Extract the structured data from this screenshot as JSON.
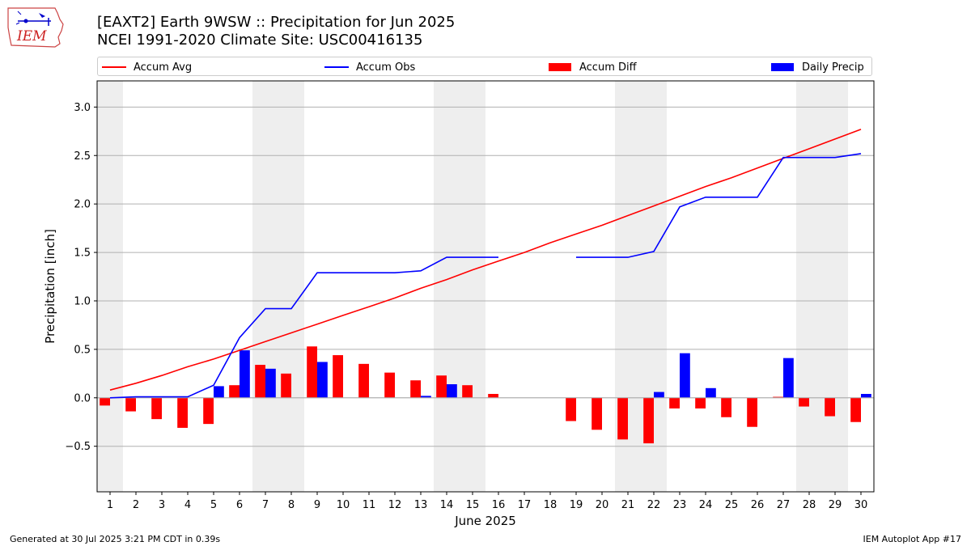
{
  "header": {
    "title": "[EAXT2] Earth 9WSW :: Precipitation for Jun 2025",
    "subtitle": "NCEI 1991-2020 Climate Site: USC00416135",
    "logo_text": "IEM"
  },
  "footer": {
    "generated": "Generated at 30 Jul 2025 3:21 PM CDT in 0.39s",
    "app": "IEM Autoplot App #17"
  },
  "chart_data": {
    "type": "bar",
    "xlabel": "June 2025",
    "ylabel": "Precipitation [inch]",
    "ylim": [
      -0.97,
      3.27
    ],
    "xlim": [
      0.5,
      30.5
    ],
    "yticks": [
      -0.5,
      0.0,
      0.5,
      1.0,
      1.5,
      2.0,
      2.5,
      3.0
    ],
    "ytick_labels": [
      "−0.5",
      "0.0",
      "0.5",
      "1.0",
      "1.5",
      "2.0",
      "2.5",
      "3.0"
    ],
    "x": [
      1,
      2,
      3,
      4,
      5,
      6,
      7,
      8,
      9,
      10,
      11,
      12,
      13,
      14,
      15,
      16,
      17,
      18,
      19,
      20,
      21,
      22,
      23,
      24,
      25,
      26,
      27,
      28,
      29,
      30
    ],
    "weekend_days": [
      1,
      7,
      8,
      14,
      15,
      21,
      22,
      28,
      29
    ],
    "grid": "horizontal",
    "legend_placement": "top",
    "series": [
      {
        "name": "Accum Avg",
        "kind": "line",
        "color": "#ff0000",
        "values": [
          0.08,
          0.15,
          0.23,
          0.32,
          0.4,
          0.49,
          0.58,
          0.67,
          0.76,
          0.85,
          0.94,
          1.03,
          1.13,
          1.22,
          1.32,
          1.41,
          1.5,
          1.6,
          1.69,
          1.78,
          1.88,
          1.98,
          2.08,
          2.18,
          2.27,
          2.37,
          2.47,
          2.57,
          2.67,
          2.77
        ]
      },
      {
        "name": "Accum Obs",
        "kind": "line",
        "color": "#0000ff",
        "values": [
          0.0,
          0.01,
          0.01,
          0.01,
          0.13,
          0.62,
          0.92,
          0.92,
          1.29,
          1.29,
          1.29,
          1.29,
          1.31,
          1.45,
          1.45,
          1.45,
          null,
          null,
          1.45,
          1.45,
          1.45,
          1.51,
          1.97,
          2.07,
          2.07,
          2.07,
          2.48,
          2.48,
          2.48,
          2.52
        ]
      },
      {
        "name": "Accum Diff",
        "kind": "bar",
        "color": "#ff0000",
        "values": [
          -0.08,
          -0.14,
          -0.22,
          -0.31,
          -0.27,
          0.13,
          0.34,
          0.25,
          0.53,
          0.44,
          0.35,
          0.26,
          0.18,
          0.23,
          0.13,
          0.04,
          null,
          null,
          -0.24,
          -0.33,
          -0.43,
          -0.47,
          -0.11,
          -0.11,
          -0.2,
          -0.3,
          0.01,
          -0.09,
          -0.19,
          -0.25
        ]
      },
      {
        "name": "Daily Precip",
        "kind": "bar",
        "color": "#0000ff",
        "values": [
          0,
          0,
          0,
          0,
          0.12,
          0.49,
          0.3,
          0,
          0.37,
          0,
          0,
          0,
          0.02,
          0.14,
          0,
          null,
          null,
          null,
          0,
          0,
          0,
          0.06,
          0.46,
          0.1,
          0,
          0,
          0.41,
          0,
          0,
          0.04
        ]
      }
    ]
  }
}
